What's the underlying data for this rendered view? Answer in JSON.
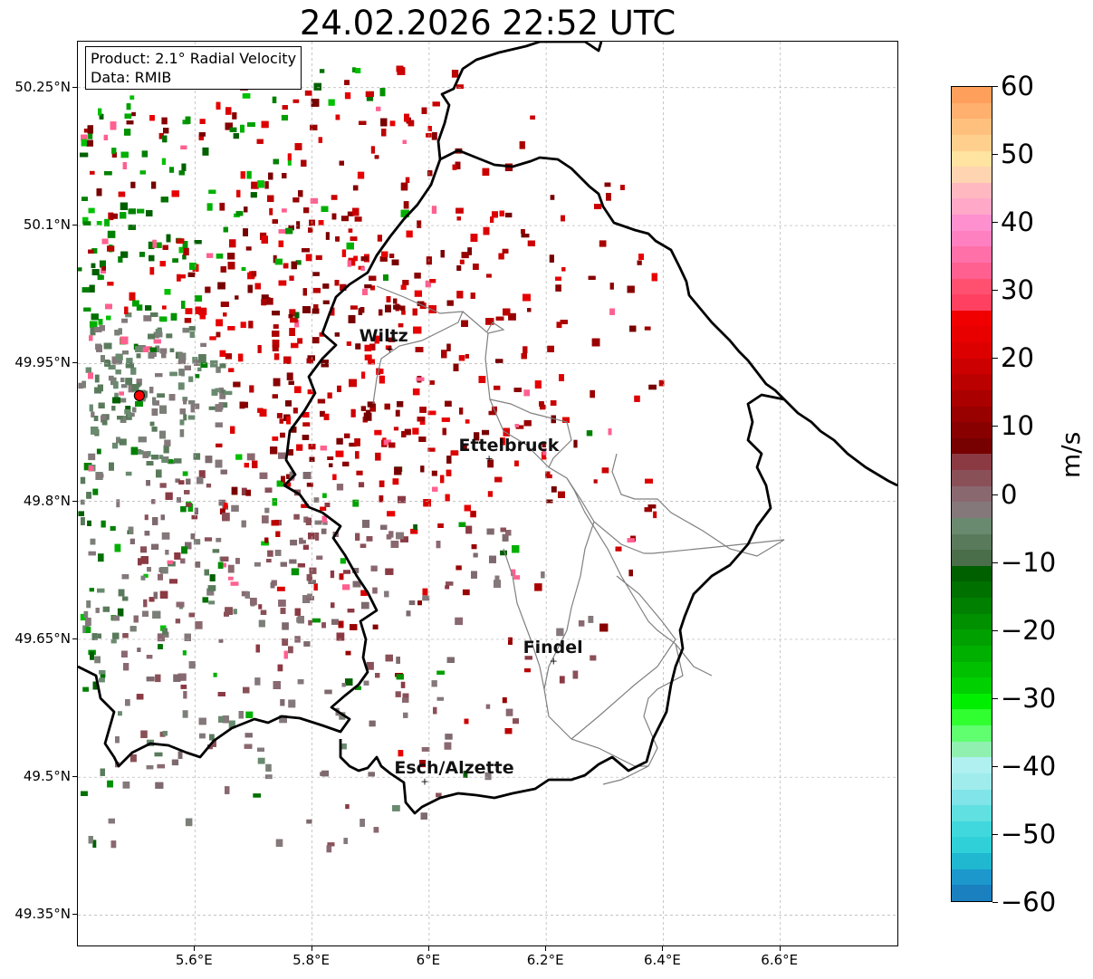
{
  "title": "24.02.2026 22:52 UTC",
  "info_box": {
    "product_line": "Product: 2.1° Radial Velocity",
    "data_line": "Data: RMIB"
  },
  "map": {
    "lon_range": [
      5.4,
      6.8
    ],
    "lat_range": [
      49.317,
      50.3
    ],
    "lat_ticks": [
      "50.25°N",
      "50.1°N",
      "49.95°N",
      "49.8°N",
      "49.65°N",
      "49.5°N",
      "49.35°N"
    ],
    "lon_ticks": [
      "5.6°E",
      "5.8°E",
      "6°E",
      "6.2°E",
      "6.4°E",
      "6.6°E"
    ],
    "radar_site": {
      "lon": 5.505,
      "lat": 49.915
    },
    "cities": [
      {
        "name": "Wiltz",
        "lon": 5.93,
        "lat": 49.966
      },
      {
        "name": "Ettelbruck",
        "lon": 6.1,
        "lat": 49.847
      },
      {
        "name": "Findel",
        "lon": 6.21,
        "lat": 49.627
      },
      {
        "name": "Esch/Alzette",
        "lon": 5.99,
        "lat": 49.496
      }
    ],
    "colors": {
      "border_national": "#000000",
      "border_cantonal": "#808080",
      "grid": "#b0b0b0",
      "radar_marker": "#ff0000"
    }
  },
  "colorbar": {
    "unit": "m/s",
    "range": [
      -60,
      60
    ],
    "tick_labels": [
      "60",
      "50",
      "40",
      "30",
      "20",
      "10",
      "0",
      "−10",
      "−20",
      "−30",
      "−40",
      "−50",
      "−60"
    ],
    "colors_top_to_bottom": [
      "#ff9f5c",
      "#ffb06e",
      "#ffc07e",
      "#ffcf8e",
      "#ffe3a0",
      "#ffd4b0",
      "#ffb8c0",
      "#ffa8c8",
      "#ff90d0",
      "#ff80c0",
      "#ff70a8",
      "#ff6090",
      "#ff5070",
      "#ff4060",
      "#f00000",
      "#e80000",
      "#dd0000",
      "#cc0000",
      "#bb0000",
      "#aa0000",
      "#990000",
      "#880000",
      "#770000",
      "#8b3a44",
      "#8a5058",
      "#8a6870",
      "#84787a",
      "#6a8a70",
      "#5a7a5c",
      "#4a6e4a",
      "#006000",
      "#007000",
      "#008000",
      "#009000",
      "#00a000",
      "#00b000",
      "#00c000",
      "#00d000",
      "#00ee00",
      "#30ff30",
      "#60ff70",
      "#90f0b0",
      "#b0f0f0",
      "#a0ecec",
      "#80e4e8",
      "#60e0e0",
      "#40d8dc",
      "#30d0d8",
      "#20b8d0",
      "#1c98cc",
      "#1a80c0"
    ]
  }
}
